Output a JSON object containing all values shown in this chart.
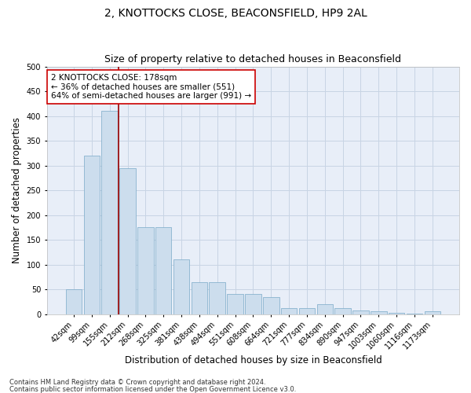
{
  "title_line1": "2, KNOTTOCKS CLOSE, BEACONSFIELD, HP9 2AL",
  "title_line2": "Size of property relative to detached houses in Beaconsfield",
  "xlabel": "Distribution of detached houses by size in Beaconsfield",
  "ylabel": "Number of detached properties",
  "footnote1": "Contains HM Land Registry data © Crown copyright and database right 2024.",
  "footnote2": "Contains public sector information licensed under the Open Government Licence v3.0.",
  "categories": [
    "42sqm",
    "99sqm",
    "155sqm",
    "212sqm",
    "268sqm",
    "325sqm",
    "381sqm",
    "438sqm",
    "494sqm",
    "551sqm",
    "608sqm",
    "664sqm",
    "721sqm",
    "777sqm",
    "834sqm",
    "890sqm",
    "947sqm",
    "1003sqm",
    "1060sqm",
    "1116sqm",
    "1173sqm"
  ],
  "values": [
    50,
    320,
    410,
    295,
    175,
    175,
    110,
    65,
    65,
    40,
    40,
    35,
    12,
    12,
    20,
    12,
    8,
    5,
    2,
    1,
    5
  ],
  "bar_color": "#ccdded",
  "bar_edge_color": "#7aaac8",
  "bar_edge_width": 0.5,
  "grid_color": "#c8d4e4",
  "bg_color": "#e8eef8",
  "vline_color": "#990000",
  "annotation_text": "2 KNOTTOCKS CLOSE: 178sqm\n← 36% of detached houses are smaller (551)\n64% of semi-detached houses are larger (991) →",
  "annotation_box_facecolor": "white",
  "annotation_box_edgecolor": "#cc0000",
  "ylim": [
    0,
    500
  ],
  "yticks": [
    0,
    50,
    100,
    150,
    200,
    250,
    300,
    350,
    400,
    450,
    500
  ],
  "title_fontsize": 10,
  "subtitle_fontsize": 9,
  "axis_label_fontsize": 8.5,
  "tick_fontsize": 7,
  "annotation_fontsize": 7.5,
  "footnote_fontsize": 6
}
